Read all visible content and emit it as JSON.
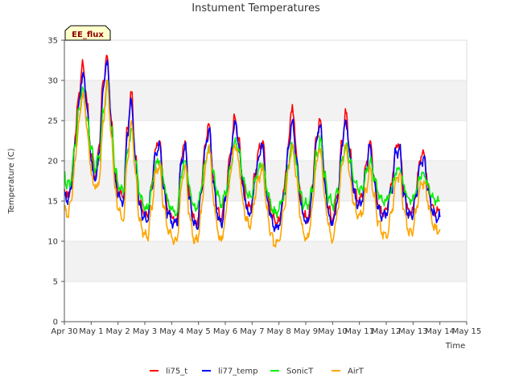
{
  "chart_data": {
    "type": "line",
    "title": "Instument Temperatures",
    "xlabel": "Time",
    "ylabel": "Temperature (C)",
    "ylim": [
      0,
      35
    ],
    "xlim": [
      0,
      15
    ],
    "yticks": [
      0,
      5,
      10,
      15,
      20,
      25,
      30,
      35
    ],
    "xticks": [
      0,
      1,
      2,
      3,
      4,
      5,
      6,
      7,
      8,
      9,
      10,
      11,
      12,
      13,
      14,
      15
    ],
    "xtick_labels": [
      "Apr 30",
      "May 1",
      "May 2",
      "May 3",
      "May 4",
      "May 5",
      "May 6",
      "May 7",
      "May 8",
      "May 9",
      "May 10",
      "May 11",
      "May 12",
      "May 13",
      "May 14",
      "May 15"
    ],
    "badge": "EE_flux",
    "legend_position": "bottom-center",
    "grid": true,
    "band_color": "#f2f2f2",
    "x": [
      0.0,
      0.1,
      0.25,
      0.4,
      0.55,
      0.7,
      0.85,
      1.0,
      1.15,
      1.3,
      1.45,
      1.6,
      1.75,
      1.9,
      2.0,
      2.2,
      2.35,
      2.5,
      2.65,
      2.8,
      2.95,
      3.1,
      3.25,
      3.4,
      3.55,
      3.7,
      3.85,
      4.0,
      4.2,
      4.35,
      4.5,
      4.65,
      4.8,
      4.95,
      5.1,
      5.25,
      5.4,
      5.55,
      5.7,
      5.85,
      6.0,
      6.2,
      6.35,
      6.5,
      6.65,
      6.8,
      6.95,
      7.1,
      7.25,
      7.4,
      7.55,
      7.7,
      7.85,
      8.0,
      8.2,
      8.35,
      8.5,
      8.65,
      8.8,
      8.95,
      9.1,
      9.25,
      9.4,
      9.55,
      9.7,
      9.85,
      10.0,
      10.2,
      10.35,
      10.5,
      10.65,
      10.8,
      10.95,
      11.1,
      11.25,
      11.4,
      11.55,
      11.7,
      11.85,
      12.0,
      12.2,
      12.35,
      12.5,
      12.65,
      12.8,
      12.95,
      13.1,
      13.25,
      13.4,
      13.55,
      13.7,
      13.85,
      14.0
    ],
    "series": [
      {
        "name": "li75_t",
        "color": "#ff0000",
        "values": [
          16.5,
          15.5,
          17.0,
          23.0,
          28.5,
          32.0,
          27.0,
          20.5,
          18.0,
          22.0,
          30.0,
          33.0,
          25.0,
          18.0,
          16.0,
          15.5,
          24.0,
          28.5,
          20.5,
          15.0,
          13.5,
          13.0,
          17.0,
          21.5,
          22.5,
          17.0,
          14.0,
          13.0,
          12.5,
          20.0,
          22.5,
          16.0,
          13.0,
          12.0,
          16.5,
          22.0,
          24.5,
          18.0,
          14.0,
          12.5,
          15.5,
          21.0,
          25.5,
          22.5,
          17.5,
          14.5,
          14.0,
          18.0,
          21.5,
          22.5,
          16.0,
          13.5,
          12.5,
          12.5,
          16.5,
          22.0,
          27.0,
          21.0,
          15.5,
          13.0,
          13.0,
          17.0,
          23.0,
          25.0,
          18.0,
          14.0,
          12.5,
          16.0,
          22.5,
          26.0,
          21.0,
          16.5,
          15.0,
          15.5,
          19.5,
          22.5,
          18.0,
          14.5,
          13.5,
          14.0,
          17.0,
          21.5,
          22.0,
          16.5,
          14.0,
          13.5,
          16.0,
          20.0,
          21.0,
          17.0,
          14.5,
          13.5,
          14.0
        ]
      },
      {
        "name": "li77_temp",
        "color": "#0000ff",
        "values": [
          16.0,
          15.0,
          16.5,
          22.0,
          27.5,
          31.0,
          26.5,
          20.0,
          17.5,
          21.0,
          29.0,
          32.5,
          24.5,
          17.5,
          15.5,
          15.0,
          23.5,
          27.5,
          20.0,
          14.5,
          13.0,
          12.5,
          16.5,
          21.0,
          22.0,
          16.5,
          13.5,
          12.5,
          12.0,
          19.5,
          22.0,
          15.5,
          12.5,
          11.5,
          16.0,
          21.5,
          24.0,
          17.5,
          13.5,
          12.0,
          15.0,
          20.5,
          25.0,
          22.0,
          17.0,
          14.0,
          13.5,
          17.5,
          20.5,
          22.0,
          15.5,
          13.0,
          11.5,
          12.0,
          16.0,
          21.5,
          25.0,
          20.5,
          15.0,
          12.5,
          12.5,
          16.5,
          22.5,
          24.5,
          17.5,
          13.5,
          12.0,
          15.5,
          22.0,
          25.0,
          20.5,
          16.0,
          14.5,
          15.0,
          19.0,
          22.0,
          17.5,
          14.0,
          13.0,
          13.5,
          16.5,
          21.0,
          21.5,
          16.0,
          13.5,
          13.0,
          15.5,
          19.5,
          20.5,
          16.5,
          14.0,
          13.0,
          13.0
        ]
      },
      {
        "name": "SonicT",
        "color": "#00ee00",
        "values": [
          18.0,
          17.0,
          17.5,
          22.0,
          26.5,
          29.0,
          25.0,
          21.5,
          19.0,
          20.5,
          26.0,
          29.5,
          24.0,
          19.0,
          17.0,
          16.0,
          21.0,
          24.0,
          20.0,
          16.0,
          14.5,
          14.0,
          16.5,
          19.5,
          20.0,
          17.5,
          15.0,
          14.0,
          13.5,
          18.0,
          20.0,
          17.0,
          14.5,
          14.0,
          16.5,
          20.0,
          21.5,
          18.5,
          16.0,
          14.5,
          16.0,
          19.0,
          22.5,
          21.5,
          18.0,
          16.0,
          15.5,
          17.5,
          19.0,
          19.5,
          16.5,
          14.5,
          13.5,
          14.0,
          16.0,
          19.5,
          22.0,
          19.5,
          16.0,
          14.5,
          14.5,
          16.5,
          21.0,
          22.5,
          18.0,
          15.5,
          14.5,
          16.0,
          20.0,
          22.0,
          20.0,
          17.5,
          16.5,
          16.5,
          18.5,
          20.0,
          18.0,
          16.0,
          15.0,
          15.0,
          16.5,
          18.5,
          19.0,
          17.0,
          15.5,
          15.0,
          16.0,
          18.0,
          18.5,
          17.0,
          15.5,
          15.0,
          15.0
        ]
      },
      {
        "name": "AirT",
        "color": "#ffa500",
        "values": [
          14.5,
          13.0,
          15.0,
          20.0,
          25.0,
          28.5,
          24.0,
          18.5,
          16.5,
          17.5,
          25.0,
          30.0,
          23.0,
          16.5,
          14.0,
          12.5,
          20.0,
          25.0,
          18.5,
          12.5,
          11.0,
          10.5,
          14.0,
          18.5,
          19.5,
          14.5,
          11.5,
          10.5,
          10.0,
          16.5,
          19.5,
          13.5,
          10.5,
          10.0,
          13.5,
          19.0,
          22.0,
          15.5,
          11.5,
          10.0,
          13.0,
          18.5,
          22.0,
          20.0,
          15.0,
          12.5,
          12.0,
          15.5,
          18.0,
          19.0,
          14.0,
          11.0,
          9.5,
          10.0,
          14.0,
          19.0,
          22.0,
          18.0,
          13.0,
          10.5,
          10.5,
          14.5,
          20.0,
          21.5,
          15.5,
          12.0,
          10.0,
          14.0,
          19.5,
          22.0,
          18.0,
          14.5,
          13.0,
          13.5,
          16.5,
          19.0,
          15.5,
          12.5,
          11.0,
          10.5,
          13.5,
          17.5,
          18.5,
          14.0,
          11.5,
          11.0,
          13.5,
          16.5,
          17.5,
          15.0,
          12.5,
          11.5,
          11.5
        ]
      }
    ]
  }
}
